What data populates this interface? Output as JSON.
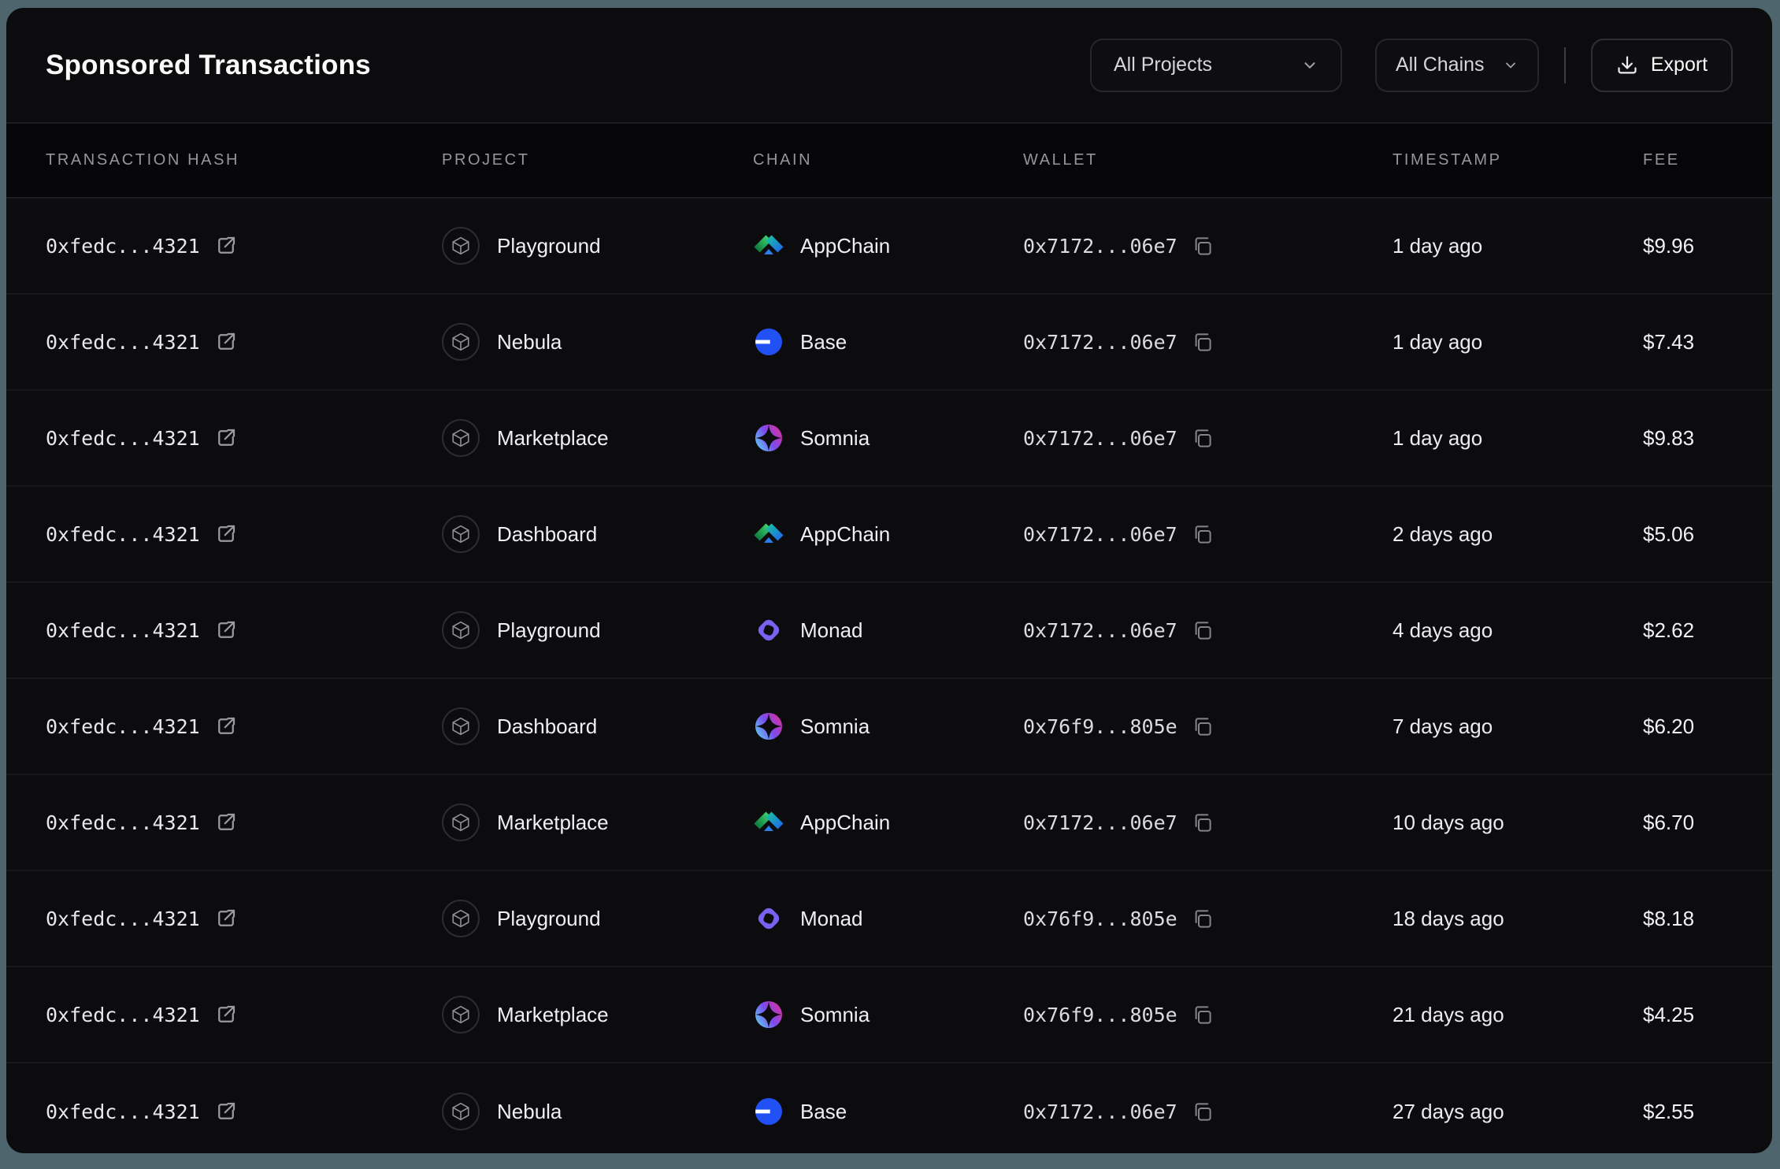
{
  "header": {
    "title": "Sponsored Transactions",
    "project_filter": {
      "value": "All Projects",
      "icon": "chevron-down-icon"
    },
    "chain_filter": {
      "value": "All Chains",
      "icon": "chevron-down-icon"
    },
    "export_button": {
      "label": "Export",
      "icon": "download-icon"
    }
  },
  "table": {
    "columns": [
      "Transaction Hash",
      "Project",
      "Chain",
      "Wallet",
      "Timestamp",
      "Fee"
    ],
    "rows": [
      {
        "hash": "0xfedc...4321",
        "project": "Playground",
        "chain": "AppChain",
        "wallet": "0x7172...06e7",
        "timestamp": "1 day ago",
        "fee": "$9.96"
      },
      {
        "hash": "0xfedc...4321",
        "project": "Nebula",
        "chain": "Base",
        "wallet": "0x7172...06e7",
        "timestamp": "1 day ago",
        "fee": "$7.43"
      },
      {
        "hash": "0xfedc...4321",
        "project": "Marketplace",
        "chain": "Somnia",
        "wallet": "0x7172...06e7",
        "timestamp": "1 day ago",
        "fee": "$9.83"
      },
      {
        "hash": "0xfedc...4321",
        "project": "Dashboard",
        "chain": "AppChain",
        "wallet": "0x7172...06e7",
        "timestamp": "2 days ago",
        "fee": "$5.06"
      },
      {
        "hash": "0xfedc...4321",
        "project": "Playground",
        "chain": "Monad",
        "wallet": "0x7172...06e7",
        "timestamp": "4 days ago",
        "fee": "$2.62"
      },
      {
        "hash": "0xfedc...4321",
        "project": "Dashboard",
        "chain": "Somnia",
        "wallet": "0x76f9...805e",
        "timestamp": "7 days ago",
        "fee": "$6.20"
      },
      {
        "hash": "0xfedc...4321",
        "project": "Marketplace",
        "chain": "AppChain",
        "wallet": "0x7172...06e7",
        "timestamp": "10 days ago",
        "fee": "$6.70"
      },
      {
        "hash": "0xfedc...4321",
        "project": "Playground",
        "chain": "Monad",
        "wallet": "0x76f9...805e",
        "timestamp": "18 days ago",
        "fee": "$8.18"
      },
      {
        "hash": "0xfedc...4321",
        "project": "Marketplace",
        "chain": "Somnia",
        "wallet": "0x76f9...805e",
        "timestamp": "21 days ago",
        "fee": "$4.25"
      },
      {
        "hash": "0xfedc...4321",
        "project": "Nebula",
        "chain": "Base",
        "wallet": "0x7172...06e7",
        "timestamp": "27 days ago",
        "fee": "$2.55"
      }
    ],
    "row_icons": {
      "hash_action": "external-link-icon",
      "project_badge": "cube-icon",
      "wallet_action": "copy-icon"
    }
  },
  "colors": {
    "page_background": "#4e656d",
    "card_background": "#0c0c0e",
    "chain_base_blue": "#2151f5",
    "chain_monad_purple": "#7b61f2",
    "chain_appchain_green": "#2fbf6b",
    "chain_appchain_blue": "#1f6fe8",
    "chain_somnia_gradient": [
      "#5fc9f2",
      "#7a4bef",
      "#d9309c"
    ]
  }
}
